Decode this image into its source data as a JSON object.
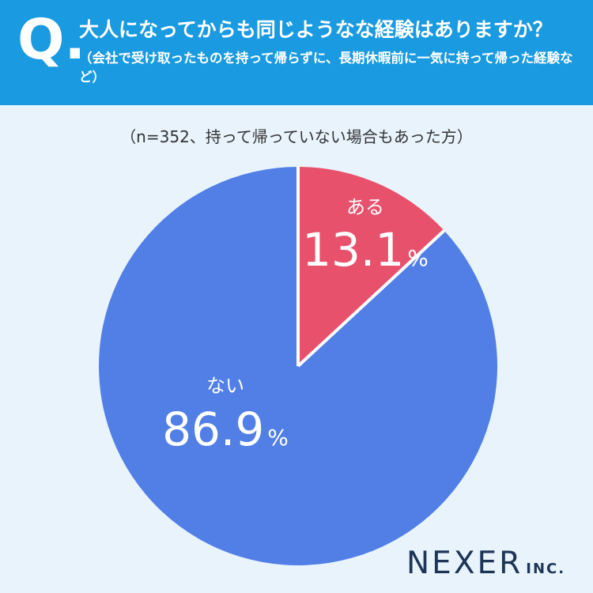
{
  "header": {
    "q_label": "Q.",
    "title": "大人になってからも同じようなな経験はありますか？",
    "subtitle": "（会社で受け取ったものを持って帰らずに、長期休暇前に一気に持って帰った経験など）"
  },
  "sample_note": "（n=352、持って帰っていない場合もあった方）",
  "colors": {
    "header_bg": "#1a9ae0",
    "background": "#e8f3fb",
    "aru": "#e8516c",
    "nai": "#527fe6"
  },
  "chart_data": {
    "type": "pie",
    "title": "",
    "slices": [
      {
        "label": "ある",
        "value": 13.1,
        "display": "13.1",
        "unit": "%",
        "color": "#e8516c"
      },
      {
        "label": "ない",
        "value": 86.9,
        "display": "86.9",
        "unit": "%",
        "color": "#527fe6"
      }
    ],
    "start": "12 o'clock",
    "direction": "clockwise"
  },
  "logo": {
    "main": "NEXER",
    "suffix": "INC."
  }
}
